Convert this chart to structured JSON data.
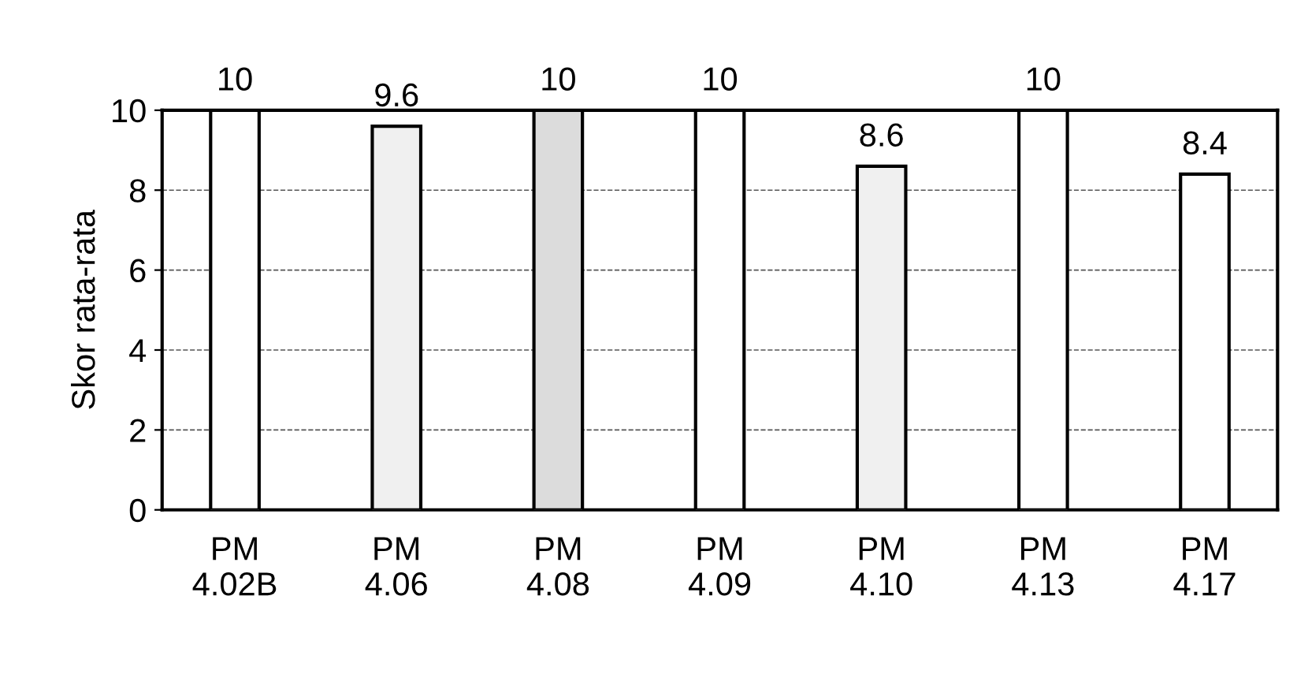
{
  "chart_data": {
    "type": "bar",
    "ylabel": "Skor rata-rata",
    "categories": [
      "PM\n4.02B",
      "PM\n4.06",
      "PM\n4.08",
      "PM\n4.09",
      "PM\n4.10",
      "PM\n4.13",
      "PM\n4.17"
    ],
    "values": [
      10,
      9.6,
      10,
      10,
      8.6,
      10,
      8.4
    ],
    "colors": [
      "#ffffff",
      "#f0f0f0",
      "#dcdcdc",
      "#ffffff",
      "#f0f0f0",
      "#ffffff",
      "#ffffff"
    ],
    "ylim": [
      0,
      10
    ],
    "yticks": [
      0,
      2,
      4,
      6,
      8,
      10
    ],
    "grid": "y",
    "data_labels": true
  }
}
